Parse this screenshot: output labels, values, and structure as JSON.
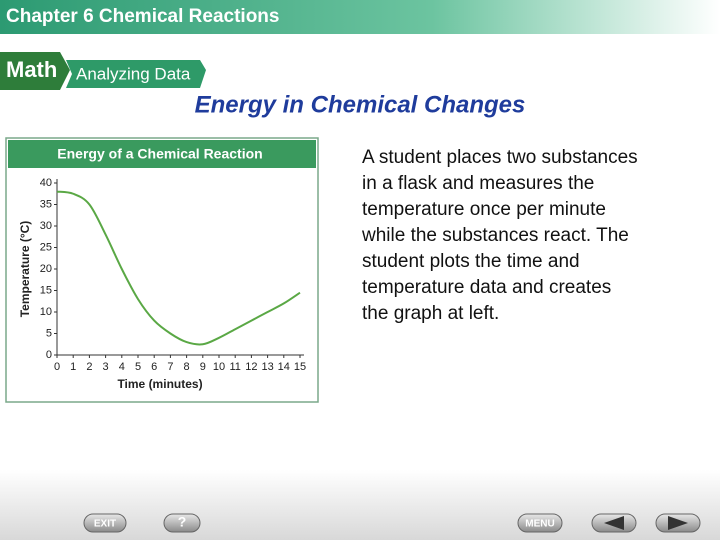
{
  "header": {
    "title": "Chapter 6  Chemical Reactions",
    "banner_left": "Math",
    "banner_right": "Analyzing Data"
  },
  "heading": "Energy in Chemical Changes",
  "paragraph": [
    "A student places two substances",
    "in a flask and measures the",
    "temperature once per minute",
    "while the substances react. The",
    "student plots the time and",
    "temperature data and creates",
    "the graph at left."
  ],
  "nav": {
    "exit": "EXIT",
    "help": "?",
    "menu": "MENU"
  },
  "chart_data": {
    "type": "line",
    "title": "Energy of a Chemical Reaction",
    "x_label": "Time (minutes)",
    "y_label": "Temperature (°C)",
    "x": [
      0,
      1,
      2,
      3,
      4,
      5,
      6,
      7,
      8,
      9,
      10,
      11,
      12,
      13,
      14,
      15
    ],
    "series": [
      {
        "color": "#5aa845",
        "values": [
          38,
          37.5,
          35,
          28,
          20,
          13,
          8,
          5,
          3,
          2.5,
          4,
          6,
          8,
          10,
          12,
          14.5
        ]
      }
    ],
    "xlim": [
      0,
      15
    ],
    "xticks": [
      0,
      1,
      2,
      3,
      4,
      5,
      6,
      7,
      8,
      9,
      10,
      11,
      12,
      13,
      14,
      15
    ],
    "ylim": [
      0,
      40
    ],
    "yticks": [
      0,
      5,
      10,
      15,
      20,
      25,
      30,
      35,
      40
    ],
    "grid": false
  }
}
